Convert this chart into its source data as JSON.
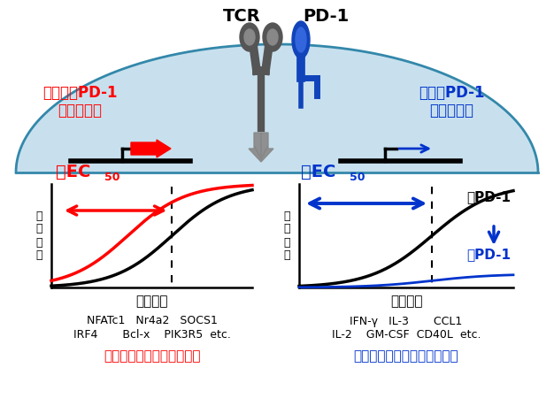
{
  "left_label1": "不容易被PD-1",
  "left_label2": "抑制的基因",
  "right_label1": "容易被PD-1",
  "right_label2": "抑制的基因",
  "tcr_label": "TCR",
  "pd1_label": "PD-1",
  "left_xaxis": "刺激强度",
  "right_xaxis": "刺激强度",
  "left_yaxis": "响\n应\n幅\n度",
  "right_yaxis": "响\n应\n幅\n度",
  "no_pd1_label": "无PD-1",
  "has_pd1_label": "有PD-1",
  "left_genes_line1": "NFATc1   Nr4a2   SOCS1",
  "left_genes_line2": "IRF4       Bcl-x    PIK3R5  etc.",
  "left_function": "转录、细胞凋亡、信号转导",
  "right_genes_line1": "IFN-γ   IL-3       CCL1",
  "right_genes_line2": "IL-2    GM-CSF  CD40L  etc.",
  "right_function": "细胞因子、效应子、免疫调控",
  "red": "#FF0000",
  "blue": "#0033CC",
  "black": "#000000",
  "gray_dark": "#555555",
  "gray_mid": "#888888",
  "gray_light": "#AAAAAA",
  "light_blue_bg": "#C8E0EE",
  "cell_outline": "#3388AA",
  "bg_white": "#FFFFFF"
}
